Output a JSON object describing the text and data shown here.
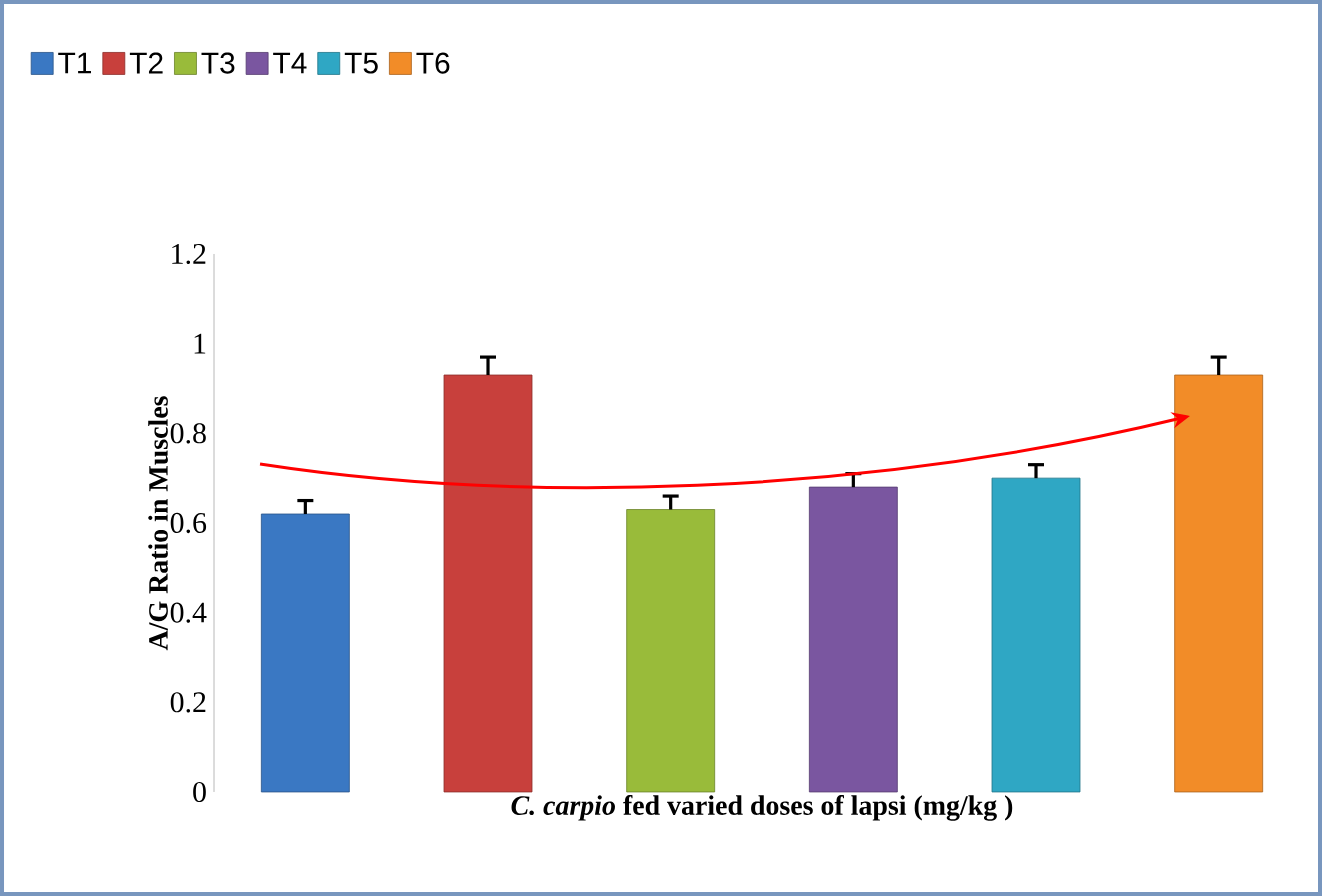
{
  "chart_data": {
    "type": "bar",
    "xlabel": "*C. carpio* fed varied doses of lapsi (mg/kg )",
    "ylabel": "A/G Ratio in Muscles",
    "categories": [
      null,
      null,
      null,
      null,
      null,
      null
    ],
    "series": [
      {
        "name": "T1",
        "color": "#3a78c3",
        "values": [
          0.62,
          null,
          null,
          null,
          null,
          null
        ],
        "errors": [
          0.03,
          null,
          null,
          null,
          null,
          null
        ]
      },
      {
        "name": "T2",
        "color": "#c8403c",
        "values": [
          null,
          0.93,
          null,
          null,
          null,
          null
        ],
        "errors": [
          null,
          0.04,
          null,
          null,
          null,
          null
        ]
      },
      {
        "name": "T3",
        "color": "#99bb3a",
        "values": [
          null,
          null,
          0.63,
          null,
          null,
          null
        ],
        "errors": [
          null,
          null,
          0.03,
          null,
          null,
          null
        ]
      },
      {
        "name": "T4",
        "color": "#7a56a0",
        "values": [
          null,
          null,
          null,
          0.68,
          null,
          null
        ],
        "errors": [
          null,
          null,
          null,
          0.03,
          null,
          null
        ]
      },
      {
        "name": "T5",
        "color": "#2fa7c4",
        "values": [
          null,
          null,
          null,
          null,
          0.7,
          null
        ],
        "errors": [
          null,
          null,
          null,
          null,
          0.03,
          null
        ]
      },
      {
        "name": "T6",
        "color": "#f28c28",
        "values": [
          null,
          null,
          null,
          null,
          null,
          0.93
        ],
        "errors": [
          null,
          null,
          null,
          null,
          null,
          0.04
        ]
      }
    ],
    "ylim": [
      0,
      1.2
    ],
    "yticks": [
      0,
      0.2,
      0.4,
      0.6,
      0.8,
      1,
      1.2
    ],
    "stacked": true,
    "legend": "top left",
    "grid": false
  }
}
